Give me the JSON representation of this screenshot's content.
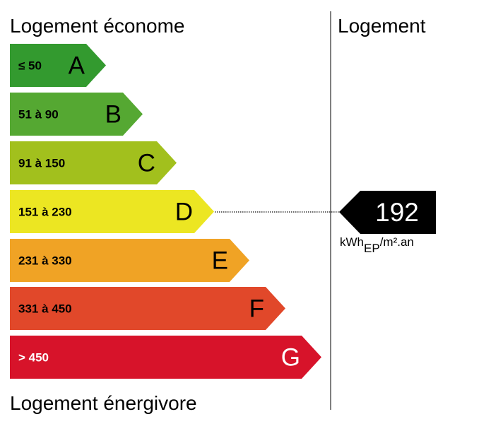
{
  "header": {
    "title": "Logement économe",
    "right_title": "Logement"
  },
  "footer": {
    "title": "Logement énergivore"
  },
  "classes": [
    {
      "range": "≤ 50",
      "letter": "A",
      "color": "#339a2f"
    },
    {
      "range": "51 à 90",
      "letter": "B",
      "color": "#55a832"
    },
    {
      "range": "91 à 150",
      "letter": "C",
      "color": "#a2c01d"
    },
    {
      "range": "151 à 230",
      "letter": "D",
      "color": "#ece622"
    },
    {
      "range": "231 à 330",
      "letter": "E",
      "color": "#f0a325"
    },
    {
      "range": "331 à 450",
      "letter": "F",
      "color": "#e1482a"
    },
    {
      "range": "> 450",
      "letter": "G",
      "color": "#d7132a"
    }
  ],
  "indicator": {
    "value": "192",
    "unit": "kWh",
    "unit_sub": "EP",
    "unit_rest": "/m².an"
  }
}
